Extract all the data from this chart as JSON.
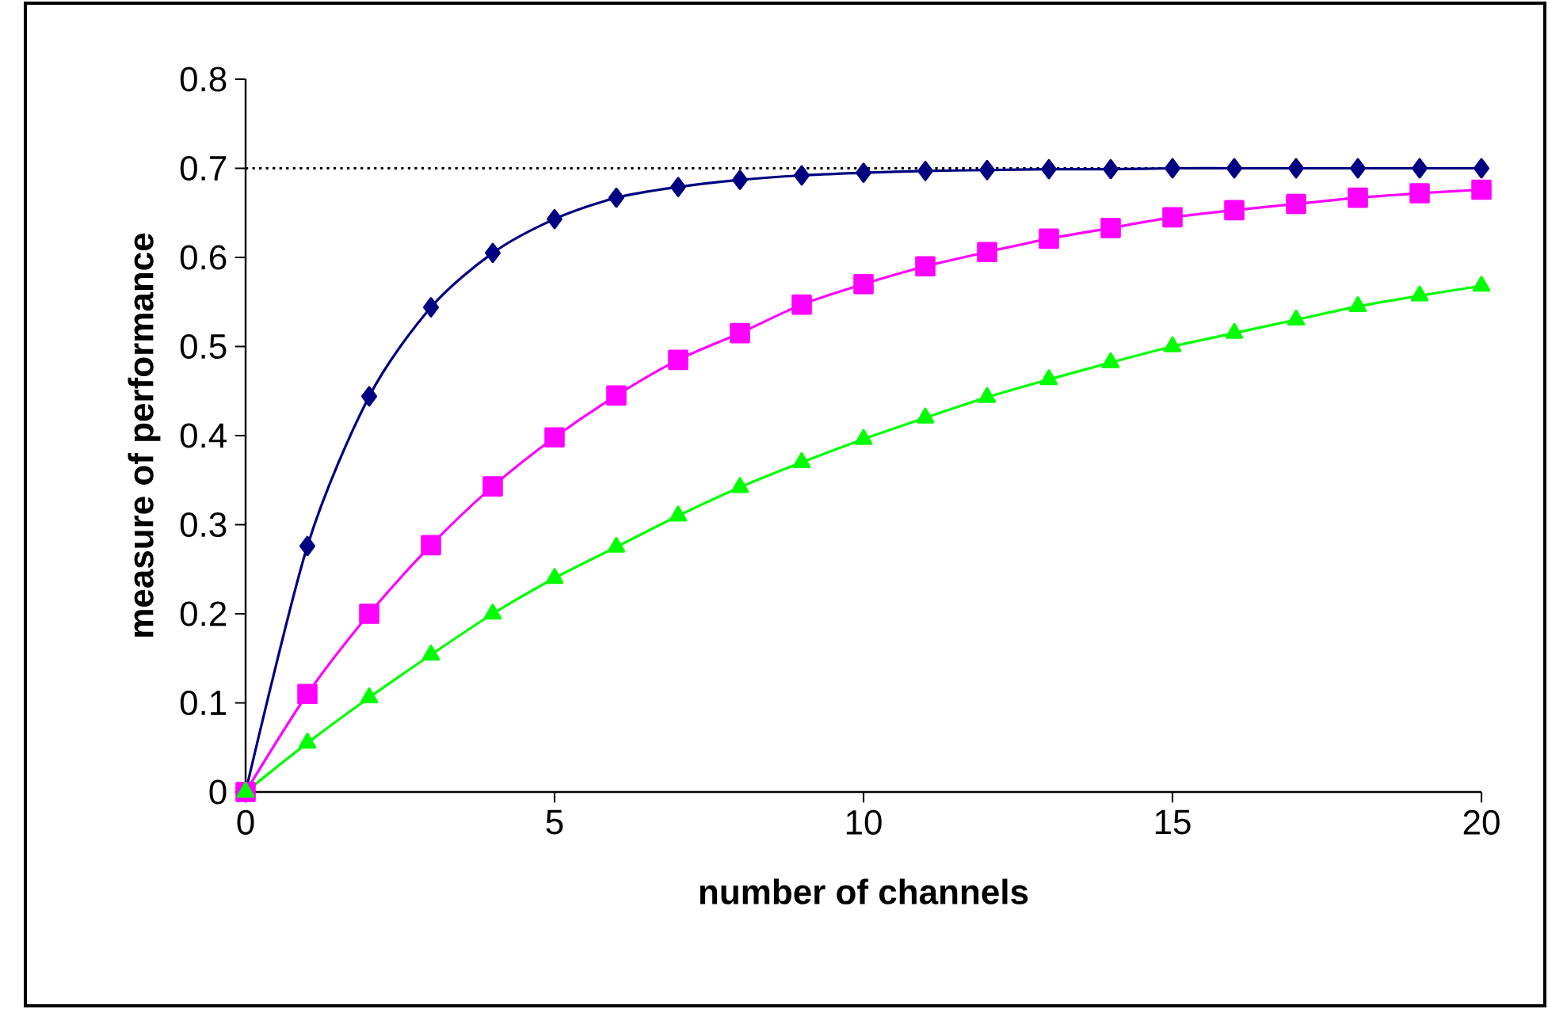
{
  "chart_data": {
    "type": "line",
    "xlabel": "number of channels",
    "ylabel": "measure of performance",
    "x": [
      0,
      1,
      2,
      3,
      4,
      5,
      6,
      7,
      8,
      9,
      10,
      11,
      12,
      13,
      14,
      15,
      16,
      17,
      18,
      19,
      20
    ],
    "series": [
      {
        "color": "#000080",
        "marker": "diamond",
        "values": [
          0,
          0.276,
          0.444,
          0.544,
          0.605,
          0.643,
          0.667,
          0.679,
          0.687,
          0.692,
          0.695,
          0.697,
          0.698,
          0.699,
          0.699,
          0.7,
          0.7,
          0.7,
          0.7,
          0.7,
          0.7
        ]
      },
      {
        "color": "#ff00ff",
        "marker": "square",
        "values": [
          0,
          0.11,
          0.2,
          0.277,
          0.343,
          0.398,
          0.445,
          0.485,
          0.515,
          0.547,
          0.57,
          0.59,
          0.606,
          0.621,
          0.633,
          0.645,
          0.653,
          0.66,
          0.667,
          0.672,
          0.676
        ]
      },
      {
        "color": "#00ff00",
        "marker": "triangle",
        "values": [
          0,
          0.055,
          0.106,
          0.154,
          0.2,
          0.24,
          0.275,
          0.31,
          0.342,
          0.37,
          0.396,
          0.42,
          0.443,
          0.463,
          0.482,
          0.5,
          0.515,
          0.53,
          0.545,
          0.557,
          0.568
        ]
      }
    ],
    "xlim": [
      0,
      20
    ],
    "xticks": [
      0,
      5,
      10,
      15,
      20
    ],
    "ylim": [
      0,
      0.8
    ],
    "yticks": [
      0,
      0.1,
      0.2,
      0.3,
      0.4,
      0.5,
      0.6,
      0.7,
      0.8
    ],
    "ref_lines": [
      {
        "axis": "y",
        "value": 0.7,
        "color": "#000000",
        "line_style": "dotted"
      }
    ],
    "grid": false
  }
}
